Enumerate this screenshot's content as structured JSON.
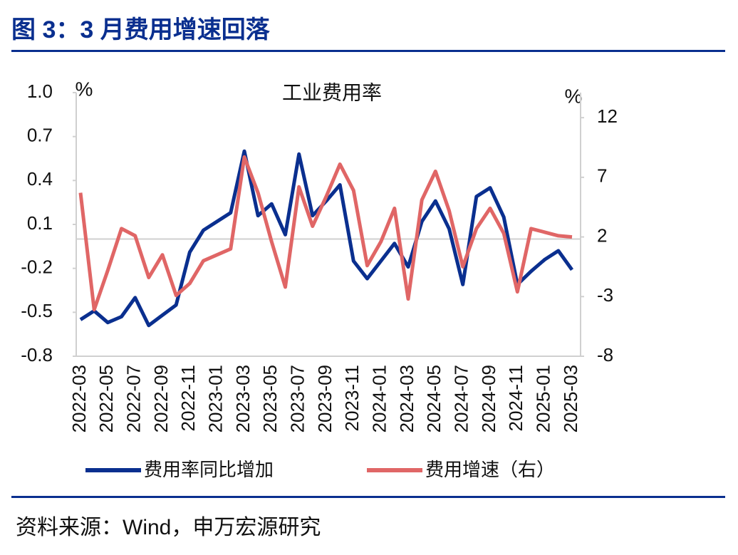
{
  "header": {
    "title": "图 3：3 月费用增速回落"
  },
  "chart_data": {
    "type": "line",
    "title": "工业费用率",
    "y_unit": "%",
    "y2_unit": "%",
    "categories": [
      "2022-03",
      null,
      "2022-05",
      null,
      "2022-07",
      null,
      "2022-09",
      null,
      "2022-11",
      null,
      "2023-01",
      null,
      "2023-03",
      null,
      "2023-05",
      null,
      "2023-07",
      null,
      "2023-09",
      null,
      "2023-11",
      null,
      "2024-01",
      null,
      "2024-03",
      null,
      "2024-05",
      null,
      "2024-07",
      null,
      "2024-09",
      null,
      "2024-11",
      null,
      "2025-01",
      null,
      "2025-03"
    ],
    "series": [
      {
        "name": "费用率同比增加",
        "color": "#0a2f8f",
        "axis": "y",
        "values": [
          -0.55,
          -0.49,
          -0.57,
          -0.53,
          -0.4,
          -0.59,
          -0.52,
          -0.45,
          -0.09,
          0.06,
          0.12,
          0.18,
          0.6,
          0.16,
          0.24,
          0.03,
          0.58,
          0.16,
          0.26,
          0.37,
          -0.15,
          -0.27,
          -0.15,
          -0.03,
          -0.19,
          0.12,
          0.26,
          0.07,
          -0.31,
          0.29,
          0.35,
          0.15,
          -0.31,
          -0.22,
          -0.14,
          -0.08,
          -0.21
        ]
      },
      {
        "name": "费用增速（右）",
        "color": "#e06666",
        "axis": "y2",
        "values": [
          5.7,
          -4.1,
          -0.8,
          2.7,
          2.1,
          -1.4,
          0.5,
          -2.9,
          -1.9,
          0.0,
          0.5,
          1.0,
          8.7,
          5.7,
          1.6,
          -2.2,
          6.2,
          2.9,
          5.4,
          8.1,
          5.9,
          -0.4,
          1.6,
          4.4,
          -3.2,
          5.1,
          7.5,
          4.2,
          -0.5,
          2.7,
          4.4,
          2.3,
          -2.6,
          2.7,
          2.4,
          2.1,
          2.0
        ]
      }
    ],
    "ylim": [
      -0.8,
      1.0
    ],
    "yticks": [
      -0.8,
      -0.5,
      -0.2,
      0.1,
      0.4,
      0.7,
      {
        "value": 1,
        "label": "1.0"
      }
    ],
    "y2lim": [
      -8,
      14.1
    ],
    "y2ticks": [
      -8,
      -3,
      2,
      7,
      12
    ],
    "legend": "bottom"
  },
  "footer": {
    "source": "资料来源：Wind，申万宏源研究"
  }
}
